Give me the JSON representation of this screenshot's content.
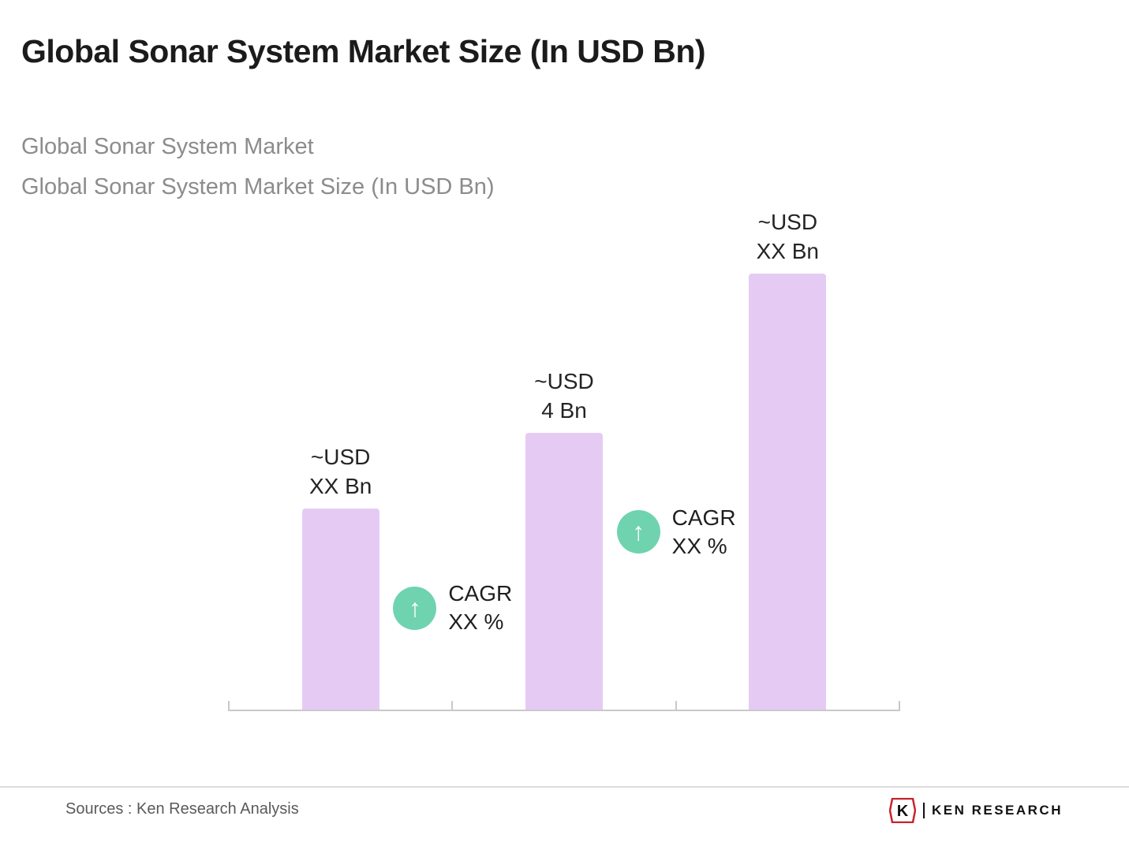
{
  "header": {
    "title": "Global Sonar System Market Size (In USD Bn)",
    "subtitle1": "Global Sonar System Market",
    "subtitle2": "Global Sonar System Market Size (In USD Bn)"
  },
  "chart_data": {
    "type": "bar",
    "title": "Global Sonar System Market Size (In USD Bn)",
    "categories": [
      "",
      "",
      ""
    ],
    "values": [
      2.9,
      4,
      6.3
    ],
    "value_labels": [
      [
        "~USD",
        "XX Bn"
      ],
      [
        "~USD",
        "4 Bn"
      ],
      [
        "~USD",
        "XX Bn"
      ]
    ],
    "xlabel": "",
    "ylabel": "",
    "ylim": [
      0,
      7
    ],
    "grid": false,
    "legend": false,
    "bar_color": "#E5CBF4",
    "axis_color": "#c9c9c9",
    "annotations": [
      {
        "between": [
          0,
          1
        ],
        "icon": "up-arrow",
        "arrow_glyph": "↑",
        "line1": "CAGR",
        "line2": "XX %",
        "badge_color": "#6FD3B0"
      },
      {
        "between": [
          1,
          2
        ],
        "icon": "up-arrow",
        "arrow_glyph": "↑",
        "line1": "CAGR",
        "line2": "XX %",
        "badge_color": "#6FD3B0"
      }
    ]
  },
  "footer": {
    "sources": "Sources : Ken Research Analysis",
    "logo_letter": "K",
    "logo_text": "KEN RESEARCH"
  }
}
